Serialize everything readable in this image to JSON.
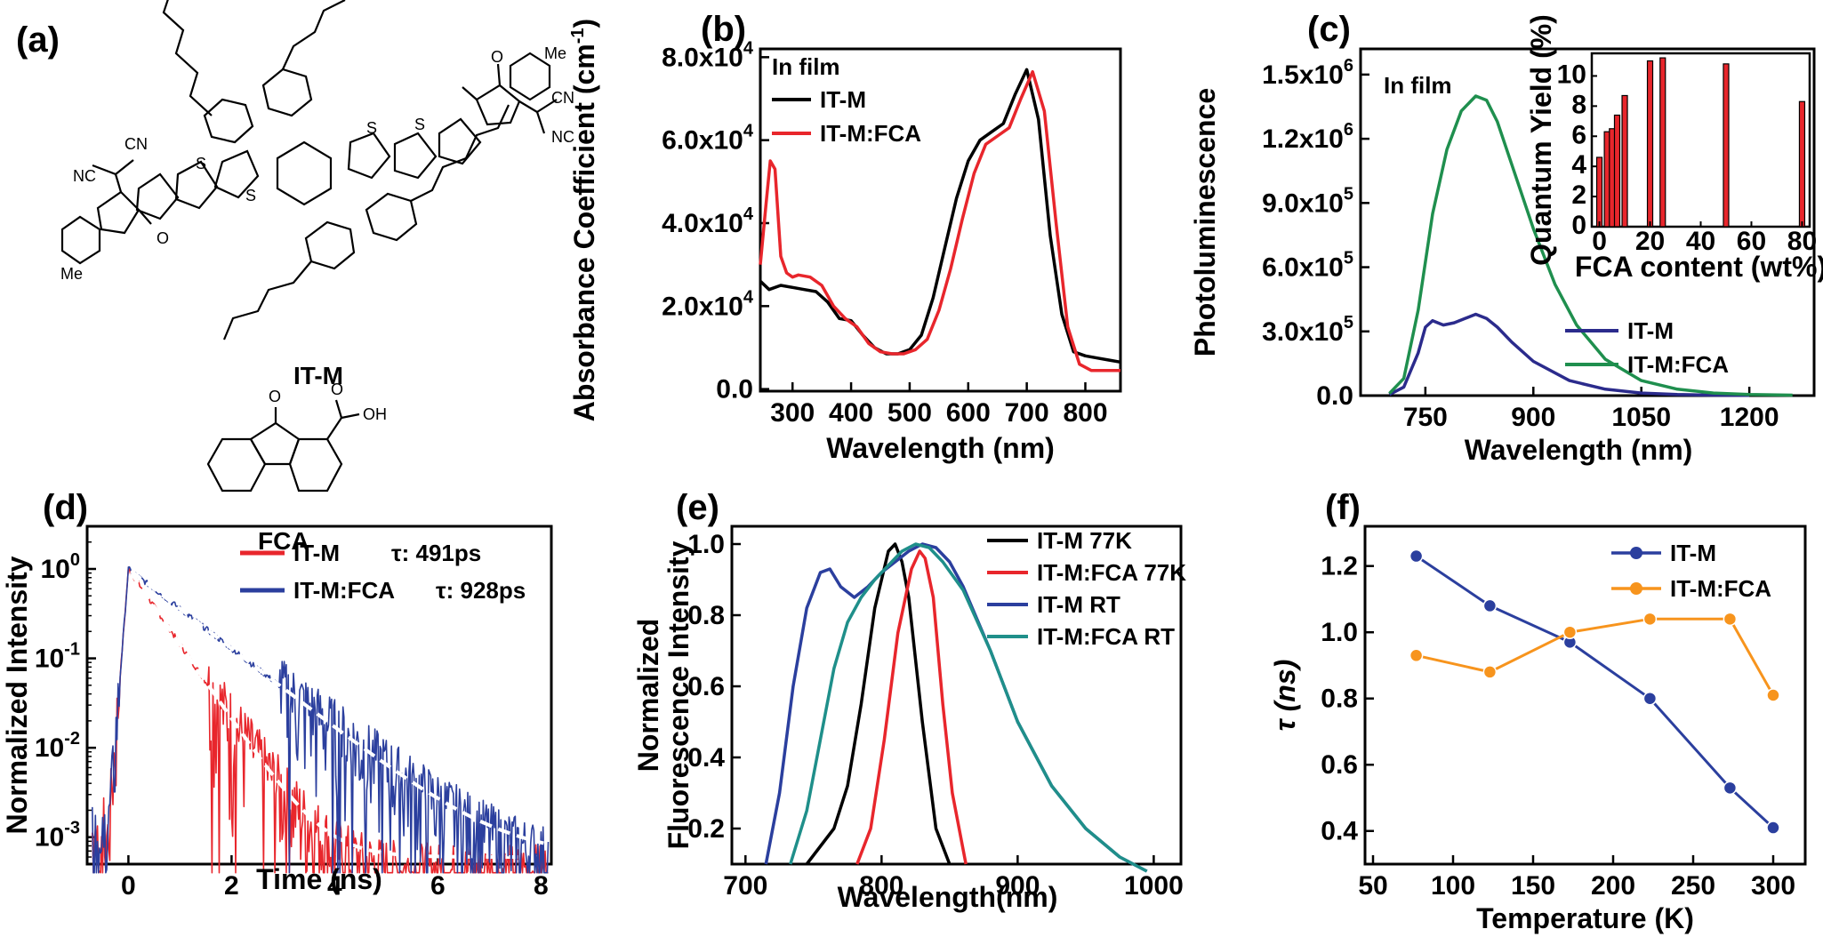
{
  "colors": {
    "black": "#000000",
    "red": "#e8262c",
    "blue": "#2b3f9e",
    "green": "#1f8f4e",
    "orange": "#f7941d",
    "teal": "#1f8f8a",
    "darkblue": "#2b2b8c"
  },
  "chart_data": [
    {
      "id": "a",
      "panel_label": "(a)",
      "type": "other",
      "molecules": [
        {
          "name": "IT-M",
          "atoms": [
            "S",
            "S",
            "S",
            "S",
            "CN",
            "NC",
            "NC",
            "CN",
            "O",
            "O",
            "Me",
            "Me"
          ]
        },
        {
          "name": "FCA",
          "atoms": [
            "O",
            "OH",
            "O"
          ]
        }
      ]
    },
    {
      "id": "b",
      "panel_label": "(b)",
      "type": "line",
      "title": "",
      "note": "In film",
      "xlabel": "Wavelength (nm)",
      "ylabel": "Absorbance Coefficient (cm^-1)",
      "xlim": [
        245,
        860
      ],
      "ylim": [
        -500,
        82000
      ],
      "xticks": [
        300,
        400,
        500,
        600,
        700,
        800
      ],
      "yticks": [
        {
          "v": 0,
          "label": "0.0"
        },
        {
          "v": 20000,
          "label": "2.0x10",
          "sup": "4"
        },
        {
          "v": 40000,
          "label": "4.0x10",
          "sup": "4"
        },
        {
          "v": 60000,
          "label": "6.0x10",
          "sup": "4"
        },
        {
          "v": 80000,
          "label": "8.0x10",
          "sup": "4"
        }
      ],
      "legend_position": "top-left",
      "series": [
        {
          "name": "IT-M",
          "color": "#000000",
          "x": [
            245,
            260,
            280,
            300,
            320,
            340,
            360,
            380,
            400,
            420,
            440,
            460,
            480,
            500,
            520,
            540,
            560,
            580,
            600,
            620,
            640,
            660,
            680,
            700,
            720,
            740,
            760,
            780,
            800,
            820,
            840,
            860
          ],
          "y": [
            26000,
            24000,
            25000,
            24500,
            24000,
            23500,
            21000,
            17000,
            16500,
            13000,
            10000,
            8500,
            8500,
            9500,
            13000,
            22000,
            34000,
            46000,
            55000,
            60000,
            62000,
            64000,
            71000,
            77000,
            65000,
            37000,
            18000,
            9000,
            8000,
            7500,
            7000,
            6500
          ]
        },
        {
          "name": "IT-M:FCA",
          "color": "#e8262c",
          "x": [
            245,
            255,
            262,
            270,
            280,
            290,
            300,
            310,
            330,
            350,
            370,
            390,
            410,
            430,
            450,
            470,
            490,
            510,
            530,
            550,
            570,
            590,
            610,
            630,
            650,
            670,
            690,
            710,
            730,
            750,
            770,
            790,
            810,
            830,
            860
          ],
          "y": [
            30000,
            45000,
            55000,
            53000,
            32000,
            28000,
            27000,
            27500,
            27000,
            25000,
            20000,
            17000,
            15000,
            11000,
            9000,
            8500,
            8500,
            9500,
            12000,
            19000,
            29000,
            41000,
            52000,
            59000,
            61000,
            63000,
            70000,
            76500,
            67000,
            40000,
            15000,
            6000,
            4500,
            4500,
            4500
          ]
        }
      ]
    },
    {
      "id": "c",
      "panel_label": "(c)",
      "type": "line",
      "title": "",
      "note": "In film",
      "xlabel": "Wavelength (nm)",
      "ylabel": "Photoluminescence",
      "xlim": [
        660,
        1290
      ],
      "ylim": [
        0,
        1620000
      ],
      "xticks": [
        750,
        900,
        1050,
        1200
      ],
      "yticks": [
        {
          "v": 0,
          "label": "0.0"
        },
        {
          "v": 300000,
          "label": "3.0x10",
          "sup": "5"
        },
        {
          "v": 600000,
          "label": "6.0x10",
          "sup": "5"
        },
        {
          "v": 900000,
          "label": "9.0x10",
          "sup": "5"
        },
        {
          "v": 1200000,
          "label": "1.2x10",
          "sup": "6"
        },
        {
          "v": 1500000,
          "label": "1.5x10",
          "sup": "6"
        }
      ],
      "legend_position": "bottom-right",
      "series": [
        {
          "name": "IT-M",
          "color": "#2b2b8c",
          "x": [
            700,
            720,
            740,
            750,
            760,
            775,
            790,
            805,
            820,
            835,
            850,
            870,
            900,
            950,
            1000,
            1050,
            1100,
            1150,
            1200
          ],
          "y": [
            5000,
            40000,
            200000,
            320000,
            350000,
            330000,
            340000,
            360000,
            380000,
            360000,
            320000,
            250000,
            160000,
            70000,
            30000,
            12000,
            5000,
            2000,
            1000
          ]
        },
        {
          "name": "IT-M:FCA",
          "color": "#1f8f4e",
          "x": [
            700,
            720,
            740,
            760,
            780,
            800,
            820,
            835,
            850,
            870,
            900,
            930,
            960,
            1000,
            1050,
            1100,
            1150,
            1200,
            1260
          ],
          "y": [
            10000,
            80000,
            400000,
            850000,
            1150000,
            1330000,
            1400000,
            1380000,
            1280000,
            1080000,
            780000,
            520000,
            330000,
            170000,
            70000,
            30000,
            12000,
            5000,
            2000
          ]
        }
      ],
      "inset": {
        "type": "bar",
        "xlabel": "FCA content (wt%)",
        "ylabel": "Quantum Yield (%)",
        "xlim": [
          -3,
          83
        ],
        "ylim": [
          0,
          11.5
        ],
        "xticks": [
          0,
          20,
          40,
          60,
          80
        ],
        "yticks": [
          0,
          2,
          4,
          6,
          8,
          10
        ],
        "x": [
          0,
          3,
          5,
          7,
          10,
          20,
          25,
          50,
          80
        ],
        "values": [
          4.6,
          6.3,
          6.5,
          7.4,
          8.7,
          11.0,
          11.2,
          10.8,
          8.3
        ]
      }
    },
    {
      "id": "d",
      "panel_label": "(d)",
      "type": "line",
      "title": "",
      "xlabel": "Time (ns)",
      "ylabel": "Normalized Intensity",
      "xlim": [
        -0.8,
        8.2
      ],
      "ylog": true,
      "ylim": [
        0.0005,
        3
      ],
      "xticks": [
        0,
        2,
        4,
        6,
        8
      ],
      "yticks": [
        {
          "v": 1,
          "label": "10",
          "sup": "0"
        },
        {
          "v": 0.1,
          "label": "10",
          "sup": "-1"
        },
        {
          "v": 0.01,
          "label": "10",
          "sup": "-2"
        },
        {
          "v": 0.001,
          "label": "10",
          "sup": "-3"
        }
      ],
      "legend_position": "top-right",
      "series": [
        {
          "name": "IT-M",
          "tau_label": "τ: 491ps",
          "color": "#e8262c",
          "tau_ns": 0.491
        },
        {
          "name": "IT-M:FCA",
          "tau_label": "τ: 928ps",
          "color": "#2b3f9e",
          "tau_ns": 0.928
        }
      ]
    },
    {
      "id": "e",
      "panel_label": "(e)",
      "type": "line",
      "title": "",
      "xlabel": "Wavelength(nm)",
      "ylabel": "Normalized Fluorescence Intensity",
      "xlim": [
        690,
        1020
      ],
      "ylim": [
        0.1,
        1.05
      ],
      "xticks": [
        700,
        800,
        900,
        1000
      ],
      "yticks": [
        {
          "v": 0.2,
          "label": "0.2"
        },
        {
          "v": 0.4,
          "label": "0.4"
        },
        {
          "v": 0.6,
          "label": "0.6"
        },
        {
          "v": 0.8,
          "label": "0.8"
        },
        {
          "v": 1.0,
          "label": "1.0"
        }
      ],
      "legend_position": "top-right",
      "series": [
        {
          "name": "IT-M 77K",
          "color": "#000000",
          "x": [
            745,
            755,
            765,
            775,
            785,
            795,
            805,
            810,
            815,
            820,
            830,
            840,
            850
          ],
          "y": [
            0.1,
            0.15,
            0.2,
            0.32,
            0.55,
            0.82,
            0.98,
            1.0,
            0.95,
            0.85,
            0.5,
            0.2,
            0.1
          ]
        },
        {
          "name": "IT-M:FCA 77K",
          "color": "#e8262c",
          "x": [
            782,
            792,
            802,
            812,
            822,
            828,
            832,
            838,
            845,
            852,
            862
          ],
          "y": [
            0.1,
            0.2,
            0.45,
            0.75,
            0.93,
            0.98,
            0.96,
            0.85,
            0.55,
            0.3,
            0.1
          ]
        },
        {
          "name": "IT-M RT",
          "color": "#2b3f9e",
          "x": [
            715,
            725,
            735,
            745,
            755,
            762,
            770,
            780,
            790,
            800,
            810,
            820,
            830,
            840,
            850,
            860,
            880,
            900,
            925,
            950,
            975,
            995
          ],
          "y": [
            0.1,
            0.3,
            0.6,
            0.82,
            0.92,
            0.93,
            0.88,
            0.85,
            0.88,
            0.92,
            0.95,
            0.98,
            1.0,
            0.99,
            0.95,
            0.88,
            0.7,
            0.5,
            0.32,
            0.2,
            0.12,
            0.08
          ]
        },
        {
          "name": "IT-M:FCA RT",
          "color": "#1f8f8a",
          "x": [
            733,
            745,
            755,
            765,
            775,
            785,
            795,
            805,
            815,
            825,
            835,
            845,
            860,
            880,
            900,
            925,
            950,
            975,
            995
          ],
          "y": [
            0.1,
            0.25,
            0.45,
            0.65,
            0.78,
            0.85,
            0.9,
            0.94,
            0.98,
            1.0,
            0.99,
            0.95,
            0.87,
            0.7,
            0.5,
            0.32,
            0.2,
            0.12,
            0.08
          ]
        }
      ]
    },
    {
      "id": "f",
      "panel_label": "(f)",
      "type": "line",
      "title": "",
      "xlabel": "Temperature (K)",
      "ylabel": "τ (ns)",
      "xlim": [
        45,
        320
      ],
      "ylim": [
        0.3,
        1.32
      ],
      "xticks": [
        50,
        100,
        150,
        200,
        250,
        300
      ],
      "yticks": [
        {
          "v": 0.4,
          "label": "0.4"
        },
        {
          "v": 0.6,
          "label": "0.6"
        },
        {
          "v": 0.8,
          "label": "0.8"
        },
        {
          "v": 1.0,
          "label": "1.0"
        },
        {
          "v": 1.2,
          "label": "1.2"
        }
      ],
      "legend_position": "top-right",
      "series": [
        {
          "name": "IT-M",
          "color": "#2b3f9e",
          "x": [
            77,
            123,
            173,
            223,
            273,
            300
          ],
          "y": [
            1.23,
            1.08,
            0.97,
            0.8,
            0.53,
            0.41
          ]
        },
        {
          "name": "IT-M:FCA",
          "color": "#f7941d",
          "x": [
            77,
            123,
            173,
            223,
            273,
            300
          ],
          "y": [
            0.93,
            0.88,
            1.0,
            1.04,
            1.04,
            0.81
          ]
        }
      ]
    }
  ]
}
